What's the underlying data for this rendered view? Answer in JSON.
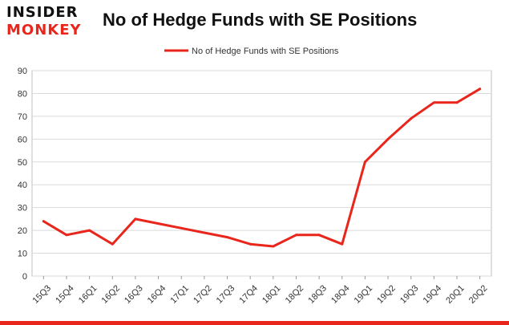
{
  "logo": {
    "line1": "INSIDER",
    "line2": "MONKEY"
  },
  "chart_data": {
    "type": "line",
    "title": "No of Hedge Funds with SE Positions",
    "xlabel": "",
    "ylabel": "",
    "ylim": [
      0,
      90
    ],
    "yticks": [
      0,
      10,
      20,
      30,
      40,
      50,
      60,
      70,
      80,
      90
    ],
    "grid": true,
    "legend_placement": "top-center",
    "categories": [
      "15Q3",
      "15Q4",
      "16Q1",
      "16Q2",
      "16Q3",
      "16Q4",
      "17Q1",
      "17Q2",
      "17Q3",
      "17Q4",
      "18Q1",
      "18Q2",
      "18Q3",
      "18Q4",
      "19Q1",
      "19Q2",
      "19Q3",
      "19Q4",
      "20Q1",
      "20Q2"
    ],
    "series": [
      {
        "name": "No of Hedge Funds with SE Positions",
        "color": "#e8261c",
        "values": [
          24,
          18,
          20,
          14,
          25,
          23,
          21,
          19,
          17,
          14,
          13,
          18,
          18,
          14,
          50,
          60,
          69,
          76,
          76,
          82
        ]
      }
    ]
  },
  "colors": {
    "accent": "#e8261c",
    "grid": "#d9d9d9",
    "axis": "#333333"
  }
}
